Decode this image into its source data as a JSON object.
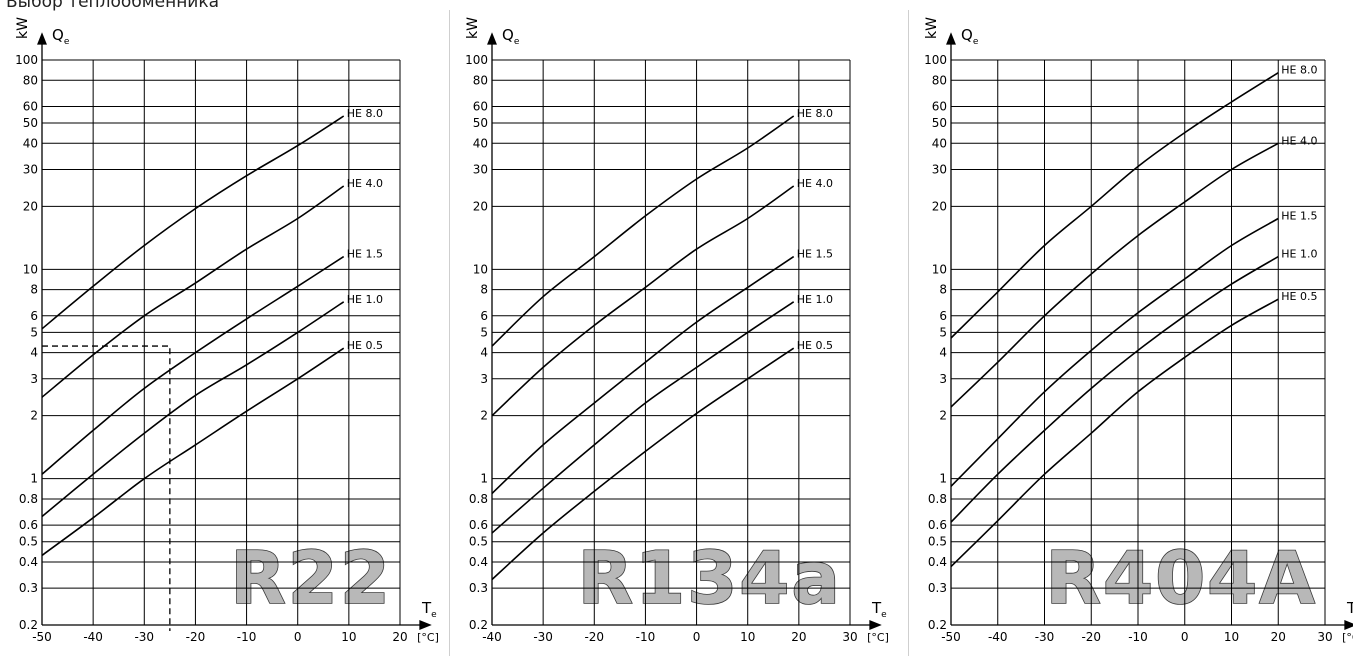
{
  "page": {
    "title": "Выбор теплообменника"
  },
  "chart_data": [
    {
      "type": "line",
      "label": "R22",
      "xlabel": "T",
      "xlabel_sub": "e",
      "x_unit": "[°C]",
      "ylabel": "Q",
      "ylabel_sub": "e",
      "y_unit": "kW",
      "xlim": [
        -50,
        20
      ],
      "ylim": [
        0.2,
        100
      ],
      "y_scale": "log",
      "x_ticks": [
        -50,
        -40,
        -30,
        -20,
        -10,
        0,
        10,
        20
      ],
      "x_tick_labels": [
        "-50",
        "-40",
        "-30",
        "-20",
        "-10",
        "0",
        "10",
        "20"
      ],
      "y_ticks": [
        0.2,
        0.3,
        0.4,
        0.5,
        0.6,
        0.8,
        1,
        2,
        3,
        4,
        5,
        6,
        8,
        10,
        20,
        30,
        40,
        50,
        60,
        80,
        100
      ],
      "y_tick_labels": [
        "0.2",
        "0.3",
        "0.4",
        "0.5",
        "0.6",
        "0.8",
        "1",
        "2",
        "3",
        "4",
        "5",
        "6",
        "8",
        "10",
        "20",
        "30",
        "40",
        "50",
        "60",
        "80",
        "100"
      ],
      "grid": true,
      "series": [
        {
          "name": "HE 8.0",
          "x": [
            -50,
            -40,
            -30,
            -20,
            -10,
            0,
            9
          ],
          "y": [
            5.2,
            8.3,
            13,
            19.5,
            28,
            39,
            54
          ]
        },
        {
          "name": "HE 4.0",
          "x": [
            -50,
            -40,
            -30,
            -20,
            -10,
            0,
            9
          ],
          "y": [
            2.45,
            3.9,
            6.0,
            8.6,
            12.5,
            17.5,
            25
          ]
        },
        {
          "name": "HE 1.5",
          "x": [
            -50,
            -40,
            -30,
            -20,
            -10,
            0,
            9
          ],
          "y": [
            1.05,
            1.7,
            2.7,
            4.0,
            5.8,
            8.3,
            11.5
          ]
        },
        {
          "name": "HE 1.0",
          "x": [
            -50,
            -40,
            -30,
            -20,
            -10,
            0,
            9
          ],
          "y": [
            0.66,
            1.05,
            1.65,
            2.5,
            3.5,
            5.0,
            7.0
          ]
        },
        {
          "name": "HE 0.5",
          "x": [
            -50,
            -40,
            -30,
            -20,
            -10,
            0,
            9
          ],
          "y": [
            0.43,
            0.65,
            1.0,
            1.45,
            2.1,
            3.0,
            4.2
          ]
        }
      ],
      "guide": {
        "x": -25,
        "y": 4.3,
        "style": "dashed"
      }
    },
    {
      "type": "line",
      "label": "R134a",
      "xlabel": "T",
      "xlabel_sub": "e",
      "x_unit": "[°C]",
      "ylabel": "Q",
      "ylabel_sub": "e",
      "y_unit": "kW",
      "xlim": [
        -40,
        30
      ],
      "ylim": [
        0.2,
        100
      ],
      "y_scale": "log",
      "x_ticks": [
        -40,
        -30,
        -20,
        -10,
        0,
        10,
        20,
        30
      ],
      "x_tick_labels": [
        "-40",
        "-30",
        "-20",
        "-10",
        "0",
        "10",
        "20",
        "30"
      ],
      "y_ticks": [
        0.2,
        0.3,
        0.4,
        0.5,
        0.6,
        0.8,
        1,
        2,
        3,
        4,
        5,
        6,
        8,
        10,
        20,
        30,
        40,
        50,
        60,
        80,
        100
      ],
      "y_tick_labels": [
        "0.2",
        "0.3",
        "0.4",
        "0.5",
        "0.6",
        "0.8",
        "1",
        "2",
        "3",
        "4",
        "5",
        "6",
        "8",
        "10",
        "20",
        "30",
        "40",
        "50",
        "60",
        "80",
        "100"
      ],
      "grid": true,
      "series": [
        {
          "name": "HE 8.0",
          "x": [
            -40,
            -30,
            -20,
            -10,
            0,
            10,
            19
          ],
          "y": [
            4.3,
            7.4,
            11.5,
            18,
            27,
            38,
            54
          ]
        },
        {
          "name": "HE 4.0",
          "x": [
            -40,
            -30,
            -20,
            -10,
            0,
            10,
            19
          ],
          "y": [
            2.0,
            3.4,
            5.4,
            8.2,
            12.5,
            17.5,
            25
          ]
        },
        {
          "name": "HE 1.5",
          "x": [
            -40,
            -30,
            -20,
            -10,
            0,
            10,
            19
          ],
          "y": [
            0.85,
            1.45,
            2.3,
            3.6,
            5.6,
            8.2,
            11.5
          ]
        },
        {
          "name": "HE 1.0",
          "x": [
            -40,
            -30,
            -20,
            -10,
            0,
            10,
            19
          ],
          "y": [
            0.55,
            0.9,
            1.45,
            2.3,
            3.4,
            5.0,
            7.0
          ]
        },
        {
          "name": "HE 0.5",
          "x": [
            -40,
            -30,
            -20,
            -10,
            0,
            10,
            19
          ],
          "y": [
            0.33,
            0.55,
            0.87,
            1.35,
            2.05,
            3.0,
            4.2
          ]
        }
      ]
    },
    {
      "type": "line",
      "label": "R404A",
      "xlabel": "T",
      "xlabel_sub": "e",
      "x_unit": "[°C]",
      "ylabel": "Q",
      "ylabel_sub": "e",
      "y_unit": "kW",
      "xlim": [
        -50,
        30
      ],
      "ylim": [
        0.2,
        100
      ],
      "y_scale": "log",
      "x_ticks": [
        -50,
        -40,
        -30,
        -20,
        -10,
        0,
        10,
        20,
        30
      ],
      "x_tick_labels": [
        "-50",
        "-40",
        "-30",
        "-20",
        "-10",
        "0",
        "10",
        "20",
        "30"
      ],
      "y_ticks": [
        0.2,
        0.3,
        0.4,
        0.5,
        0.6,
        0.8,
        1,
        2,
        3,
        4,
        5,
        6,
        8,
        10,
        20,
        30,
        40,
        50,
        60,
        80,
        100
      ],
      "y_tick_labels": [
        "0.2",
        "0.3",
        "0.4",
        "0.5",
        "0.6",
        "0.8",
        "1",
        "2",
        "3",
        "4",
        "5",
        "6",
        "8",
        "10",
        "20",
        "30",
        "40",
        "50",
        "60",
        "80",
        "100"
      ],
      "grid": true,
      "series": [
        {
          "name": "HE 8.0",
          "x": [
            -50,
            -40,
            -30,
            -20,
            -10,
            0,
            10,
            20
          ],
          "y": [
            4.7,
            7.8,
            13,
            20,
            31,
            45,
            63,
            87
          ]
        },
        {
          "name": "HE 4.0",
          "x": [
            -50,
            -40,
            -30,
            -20,
            -10,
            0,
            10,
            20
          ],
          "y": [
            2.2,
            3.6,
            6.0,
            9.5,
            14.5,
            21,
            30,
            40
          ]
        },
        {
          "name": "HE 1.5",
          "x": [
            -50,
            -40,
            -30,
            -20,
            -10,
            0,
            10,
            20
          ],
          "y": [
            0.92,
            1.55,
            2.6,
            4.1,
            6.2,
            9.0,
            13,
            17.5
          ]
        },
        {
          "name": "HE 1.0",
          "x": [
            -50,
            -40,
            -30,
            -20,
            -10,
            0,
            10,
            20
          ],
          "y": [
            0.62,
            1.05,
            1.7,
            2.7,
            4.1,
            6.0,
            8.5,
            11.5
          ]
        },
        {
          "name": "HE 0.5",
          "x": [
            -50,
            -40,
            -30,
            -20,
            -10,
            0,
            10,
            20
          ],
          "y": [
            0.38,
            0.63,
            1.05,
            1.65,
            2.6,
            3.8,
            5.4,
            7.2
          ]
        }
      ]
    }
  ]
}
